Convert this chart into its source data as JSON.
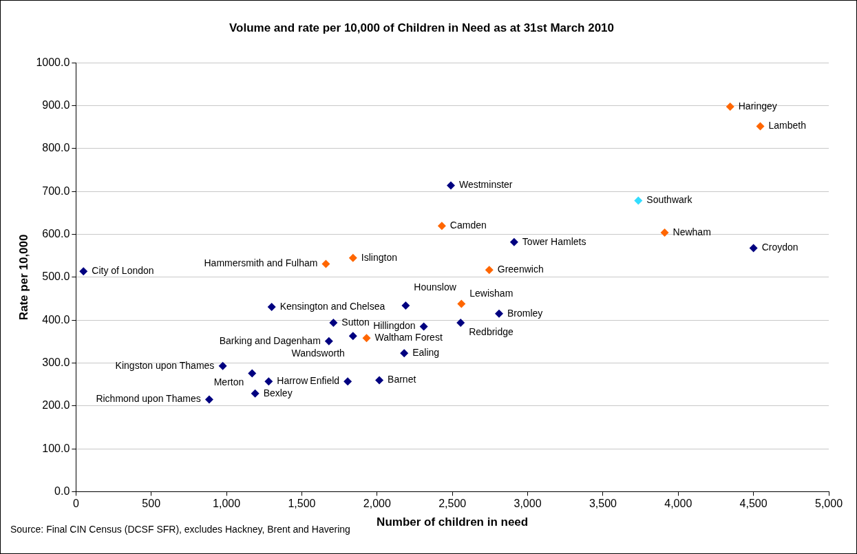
{
  "chart_data": {
    "type": "scatter",
    "title": "Volume and rate per 10,000 of Children in Need as at 31st March 2010",
    "xlabel": "Number of children in need",
    "ylabel": "Rate per 10,000",
    "xlim": [
      0,
      5000
    ],
    "xticks": [
      0,
      500,
      {
        "value": 1000,
        "label": "1,000"
      },
      {
        "value": 1500,
        "label": "1,500"
      },
      {
        "value": 2000,
        "label": "2,000"
      },
      {
        "value": 2500,
        "label": "2,500"
      },
      {
        "value": 3000,
        "label": "3,000"
      },
      {
        "value": 3500,
        "label": "3,500"
      },
      {
        "value": 4000,
        "label": "4,000"
      },
      {
        "value": 4500,
        "label": "4,500"
      },
      {
        "value": 5000,
        "label": "5,000"
      }
    ],
    "ylim": [
      0,
      1000
    ],
    "yticks": [
      {
        "value": 0,
        "label": "0.0"
      },
      {
        "value": 100,
        "label": "100.0"
      },
      {
        "value": 200,
        "label": "200.0"
      },
      {
        "value": 300,
        "label": "300.0"
      },
      {
        "value": 400,
        "label": "400.0"
      },
      {
        "value": 500,
        "label": "500.0"
      },
      {
        "value": 600,
        "label": "600.0"
      },
      {
        "value": 700,
        "label": "700.0"
      },
      {
        "value": 800,
        "label": "800.0"
      },
      {
        "value": 900,
        "label": "900.0"
      },
      {
        "value": 1000,
        "label": "1000.0"
      }
    ],
    "grid": "y",
    "legend": false,
    "marker": "diamond",
    "series": [
      {
        "x": [
          50,
          1300,
          1660,
          1840,
          1710,
          1680,
          1840,
          1930,
          975,
          1170,
          1280,
          1190,
          885,
          1805,
          2015,
          2180,
          2190,
          2310,
          2560,
          2555,
          2810,
          2490,
          2430,
          2910,
          2745,
          3735,
          3910,
          4500,
          4345,
          4545
        ],
        "values": [
          514,
          431,
          531,
          545,
          394,
          351,
          363,
          358,
          293,
          276,
          257,
          229,
          215,
          257,
          260,
          323,
          434,
          385,
          438,
          394,
          415,
          714,
          620,
          582,
          517,
          679,
          604,
          568,
          898,
          852
        ],
        "colors": [
          "#000080",
          "#000080",
          "#ff6600",
          "#ff6600",
          "#000080",
          "#000080",
          "#000080",
          "#ff6600",
          "#000080",
          "#000080",
          "#000080",
          "#000080",
          "#000080",
          "#000080",
          "#000080",
          "#000080",
          "#000080",
          "#000080",
          "#ff6600",
          "#000080",
          "#000080",
          "#000080",
          "#ff6600",
          "#000080",
          "#ff6600",
          "#33ddff",
          "#ff6600",
          "#000080",
          "#ff6600",
          "#ff6600"
        ]
      }
    ],
    "annotations": [
      {
        "text": "City of London",
        "x": 50,
        "y": 514
      },
      {
        "text": "Kensington and Chelsea",
        "x": 1300,
        "y": 431
      },
      {
        "text": "Hammersmith and Fulham",
        "x": 1660,
        "y": 531
      },
      {
        "text": "Islington",
        "x": 1840,
        "y": 545
      },
      {
        "text": "Sutton",
        "x": 1710,
        "y": 394
      },
      {
        "text": "Barking and Dagenham",
        "x": 1680,
        "y": 351
      },
      {
        "text": "Wandsworth",
        "x": 1840,
        "y": 363
      },
      {
        "text": "Waltham Forest",
        "x": 1930,
        "y": 358
      },
      {
        "text": "Kingston upon Thames",
        "x": 975,
        "y": 293
      },
      {
        "text": "Merton",
        "x": 1170,
        "y": 276
      },
      {
        "text": "Harrow",
        "x": 1280,
        "y": 257
      },
      {
        "text": "Bexley",
        "x": 1190,
        "y": 229
      },
      {
        "text": "Richmond upon Thames",
        "x": 885,
        "y": 215
      },
      {
        "text": "Enfield",
        "x": 1805,
        "y": 257
      },
      {
        "text": "Barnet",
        "x": 2015,
        "y": 260
      },
      {
        "text": "Ealing",
        "x": 2180,
        "y": 323
      },
      {
        "text": "Hounslow",
        "x": 2190,
        "y": 434
      },
      {
        "text": "Hillingdon",
        "x": 2310,
        "y": 385
      },
      {
        "text": "Lewisham",
        "x": 2560,
        "y": 438
      },
      {
        "text": "Redbridge",
        "x": 2555,
        "y": 394
      },
      {
        "text": "Bromley",
        "x": 2810,
        "y": 415
      },
      {
        "text": "Westminster",
        "x": 2490,
        "y": 714
      },
      {
        "text": "Camden",
        "x": 2430,
        "y": 620
      },
      {
        "text": "Tower Hamlets",
        "x": 2910,
        "y": 582
      },
      {
        "text": "Greenwich",
        "x": 2745,
        "y": 517
      },
      {
        "text": "Southwark",
        "x": 3735,
        "y": 679
      },
      {
        "text": "Newham",
        "x": 3910,
        "y": 604
      },
      {
        "text": "Croydon",
        "x": 4500,
        "y": 568
      },
      {
        "text": "Haringey",
        "x": 4345,
        "y": 898
      },
      {
        "text": "Lambeth",
        "x": 4545,
        "y": 852
      },
      "Source: Final CIN Census (DCSF SFR), excludes Hackney, Brent and Havering"
    ]
  }
}
